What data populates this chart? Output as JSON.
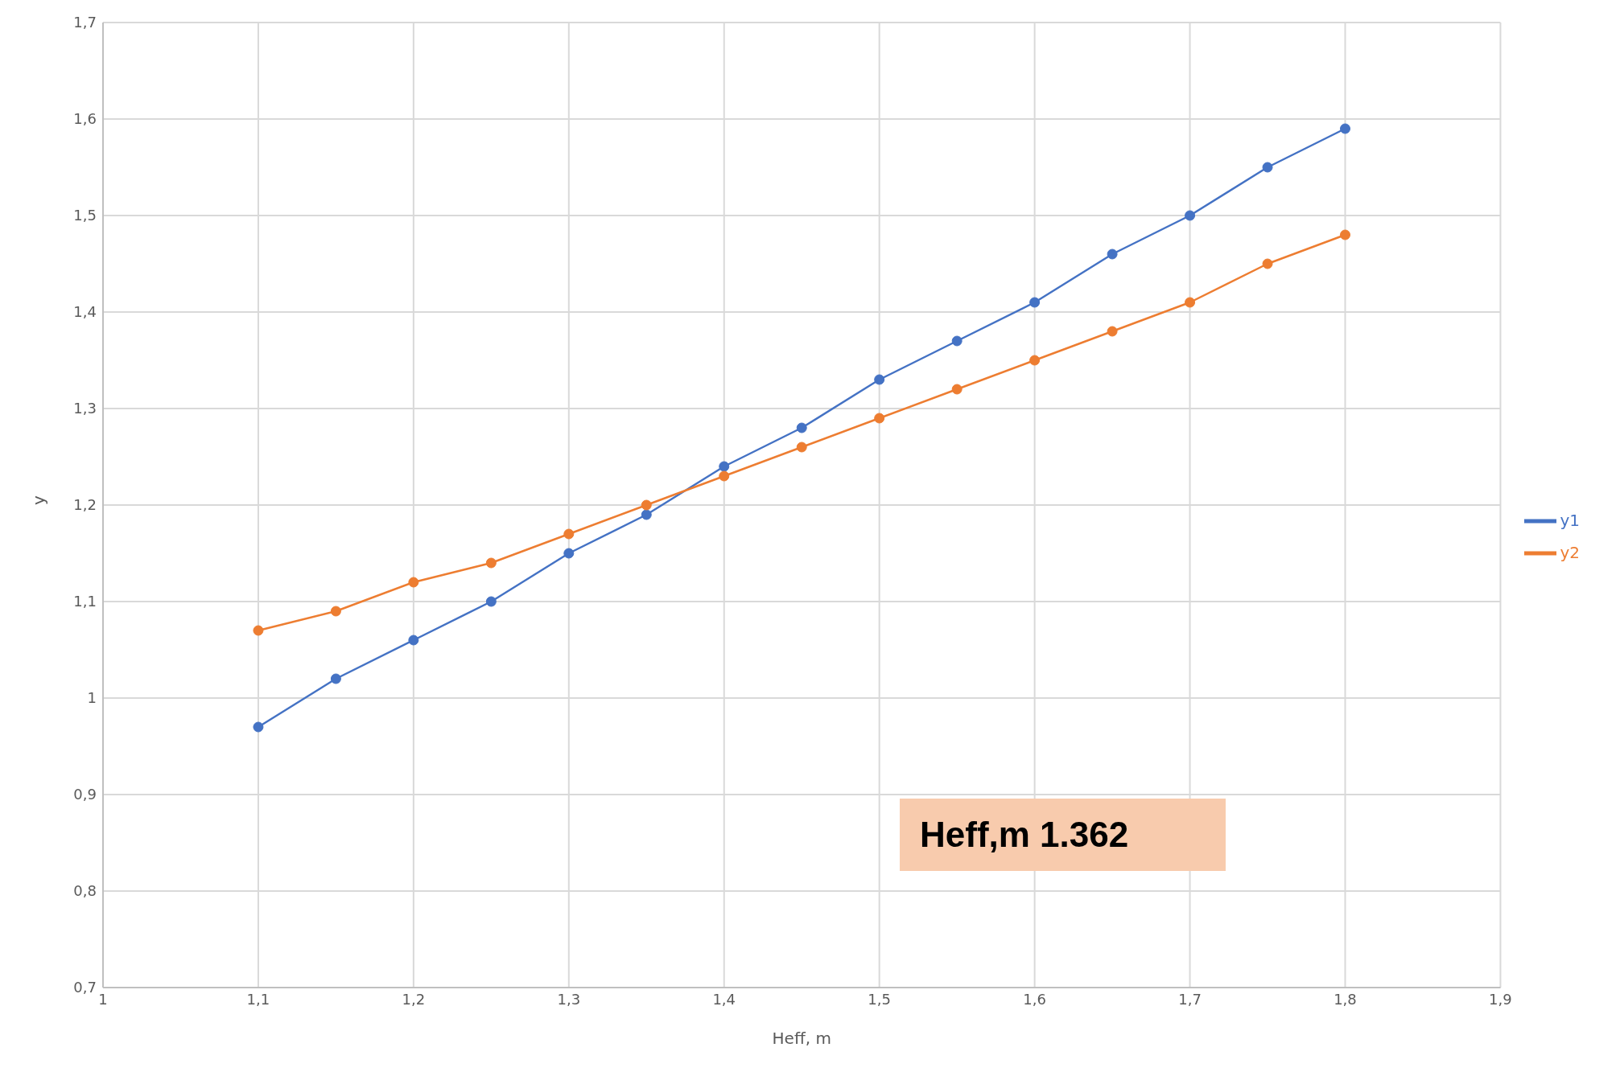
{
  "chart_data": {
    "type": "line",
    "xlabel": "Heff, m",
    "ylabel": "y",
    "x": [
      1.1,
      1.15,
      1.2,
      1.25,
      1.3,
      1.35,
      1.4,
      1.45,
      1.5,
      1.55,
      1.6,
      1.65,
      1.7,
      1.75,
      1.8
    ],
    "series": [
      {
        "name": "y1",
        "color": "#4472c4",
        "values": [
          0.97,
          1.02,
          1.06,
          1.1,
          1.15,
          1.19,
          1.24,
          1.28,
          1.33,
          1.37,
          1.41,
          1.46,
          1.5,
          1.55,
          1.59
        ]
      },
      {
        "name": "y2",
        "color": "#ed7d31",
        "values": [
          1.07,
          1.09,
          1.12,
          1.14,
          1.17,
          1.2,
          1.23,
          1.26,
          1.29,
          1.32,
          1.35,
          1.38,
          1.41,
          1.45,
          1.48
        ]
      }
    ],
    "xlim": [
      1,
      1.9
    ],
    "xticks": [
      {
        "value": 1,
        "label": "1"
      },
      {
        "value": 1.1,
        "label": "1,1"
      },
      {
        "value": 1.2,
        "label": "1,2"
      },
      {
        "value": 1.3,
        "label": "1,3"
      },
      {
        "value": 1.4,
        "label": "1,4"
      },
      {
        "value": 1.5,
        "label": "1,5"
      },
      {
        "value": 1.6,
        "label": "1,6"
      },
      {
        "value": 1.7,
        "label": "1,7"
      },
      {
        "value": 1.8,
        "label": "1,8"
      },
      {
        "value": 1.9,
        "label": "1,9"
      }
    ],
    "ylim": [
      0.7,
      1.7
    ],
    "yticks": [
      {
        "value": 0.7,
        "label": "0,7"
      },
      {
        "value": 0.8,
        "label": "0,8"
      },
      {
        "value": 0.9,
        "label": "0,9"
      },
      {
        "value": 1,
        "label": "1"
      },
      {
        "value": 1.1,
        "label": "1,1"
      },
      {
        "value": 1.2,
        "label": "1,2"
      },
      {
        "value": 1.3,
        "label": "1,3"
      },
      {
        "value": 1.4,
        "label": "1,4"
      },
      {
        "value": 1.5,
        "label": "1,5"
      },
      {
        "value": 1.6,
        "label": "1,6"
      },
      {
        "value": 1.7,
        "label": "1,7"
      }
    ],
    "annotations": [
      "Heff,m 1.362"
    ],
    "grid": true,
    "legend": "right",
    "marker": "circle",
    "line_style": "solid"
  }
}
